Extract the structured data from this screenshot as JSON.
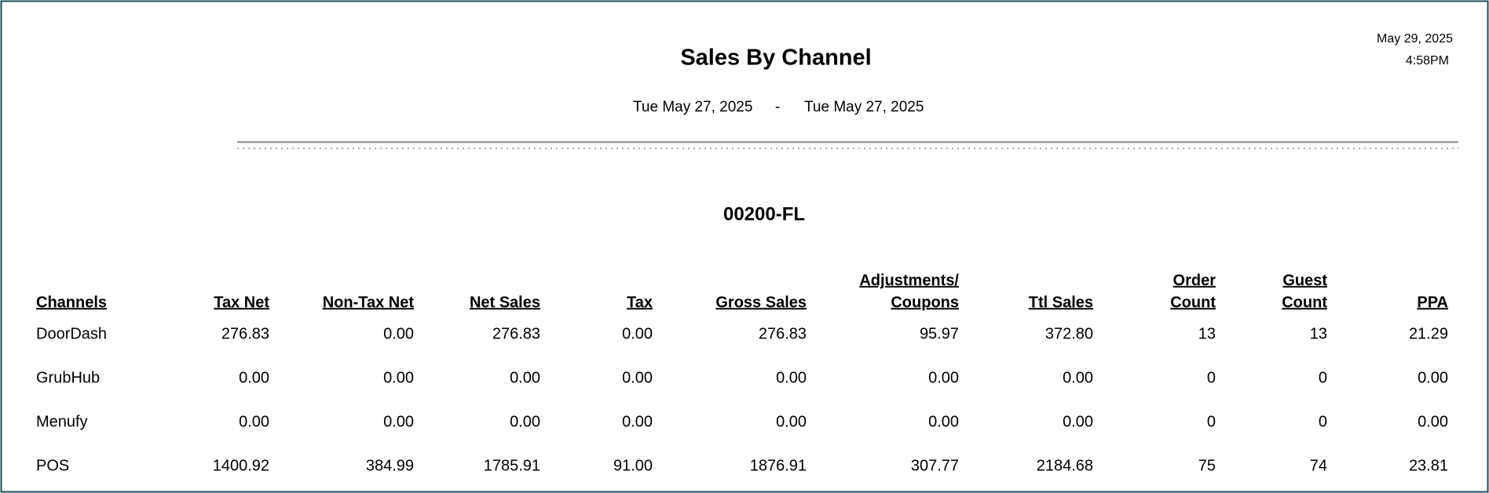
{
  "header": {
    "title": "Sales By Channel",
    "date_start": "Tue May 27, 2025",
    "date_separator": "-",
    "date_end": "Tue May 27, 2025",
    "print_date": "May 29, 2025",
    "print_time": "4:58PM"
  },
  "store": "00200-FL",
  "table": {
    "headers": [
      [
        "Channels"
      ],
      [
        "Tax Net"
      ],
      [
        "Non-Tax Net"
      ],
      [
        "Net Sales"
      ],
      [
        "Tax"
      ],
      [
        "Gross Sales"
      ],
      [
        "Adjustments/",
        "Coupons"
      ],
      [
        "Ttl Sales"
      ],
      [
        "Order",
        "Count"
      ],
      [
        "Guest",
        "Count"
      ],
      [
        "PPA"
      ]
    ],
    "rows": [
      [
        "DoorDash",
        "276.83",
        "0.00",
        "276.83",
        "0.00",
        "276.83",
        "95.97",
        "372.80",
        "13",
        "13",
        "21.29"
      ],
      [
        "GrubHub",
        "0.00",
        "0.00",
        "0.00",
        "0.00",
        "0.00",
        "0.00",
        "0.00",
        "0",
        "0",
        "0.00"
      ],
      [
        "Menufy",
        "0.00",
        "0.00",
        "0.00",
        "0.00",
        "0.00",
        "0.00",
        "0.00",
        "0",
        "0",
        "0.00"
      ],
      [
        "POS",
        "1400.92",
        "384.99",
        "1785.91",
        "91.00",
        "1876.91",
        "307.77",
        "2184.68",
        "75",
        "74",
        "23.81"
      ]
    ]
  }
}
